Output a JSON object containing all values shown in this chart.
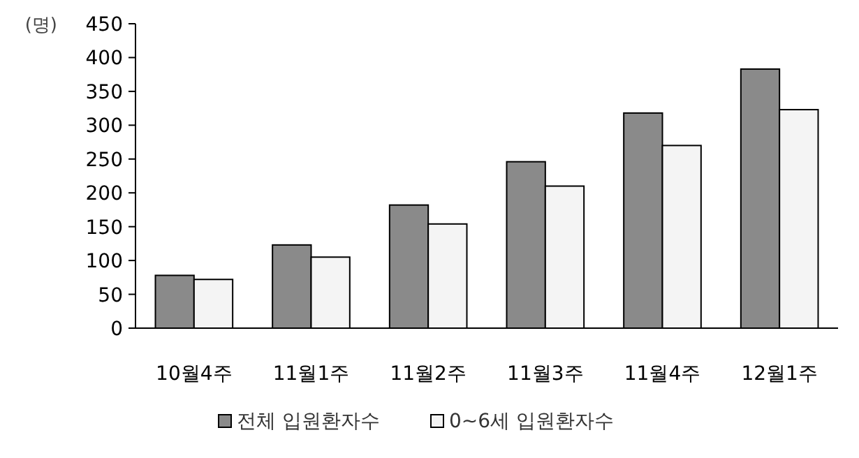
{
  "chart_data": {
    "type": "bar",
    "ylabel": "(명)",
    "categories": [
      "10월4주",
      "11월1주",
      "11월2주",
      "11월3주",
      "11월4주",
      "12월1주"
    ],
    "series": [
      {
        "name": "전체 입원환자수",
        "color": "#8a8a8a",
        "values": [
          78,
          123,
          182,
          246,
          318,
          383
        ]
      },
      {
        "name": "0~6세 입원환자수",
        "color": "#f4f4f4",
        "values": [
          72,
          105,
          154,
          210,
          270,
          323
        ]
      }
    ],
    "ylim": [
      0,
      450
    ],
    "yticks": [
      0,
      50,
      100,
      150,
      200,
      250,
      300,
      350,
      400,
      450
    ],
    "grid": false,
    "legend": "bottom"
  }
}
